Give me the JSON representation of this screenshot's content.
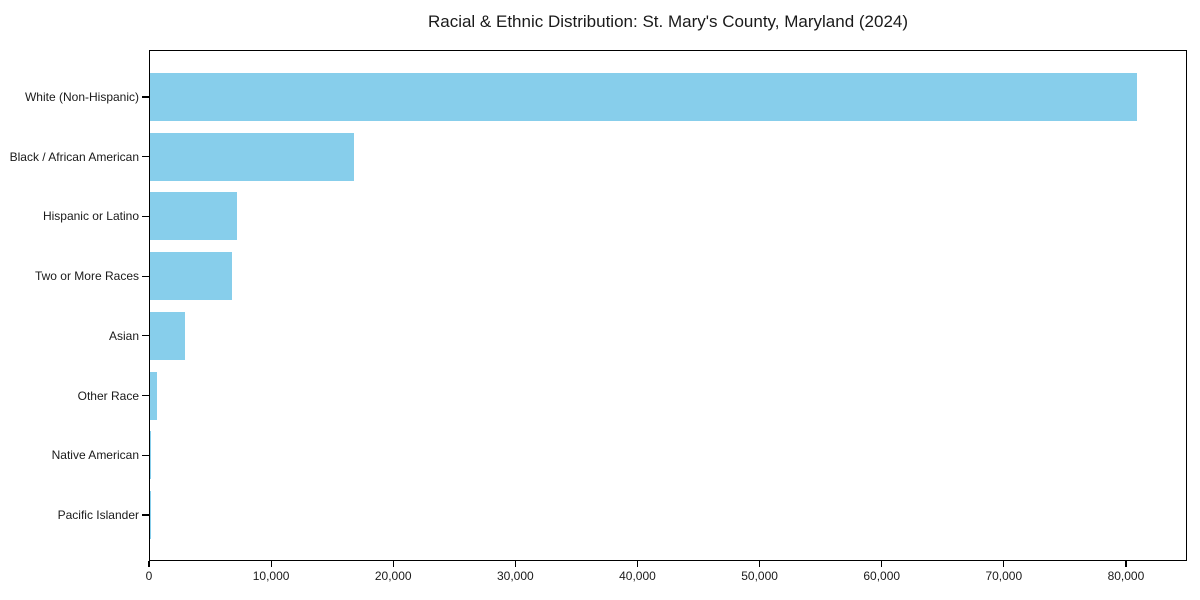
{
  "chart_data": {
    "type": "bar",
    "orientation": "horizontal",
    "title": "Racial & Ethnic Distribution: St. Mary's County, Maryland (2024)",
    "categories": [
      "White (Non-Hispanic)",
      "Black / African American",
      "Hispanic or Latino",
      "Two or More Races",
      "Asian",
      "Other Race",
      "Native American",
      "Pacific Islander"
    ],
    "values": [
      80800,
      16700,
      7100,
      6700,
      2900,
      600,
      100,
      50
    ],
    "xlabel": "",
    "ylabel": "",
    "xlim": [
      0,
      85000
    ],
    "xticks": [
      0,
      10000,
      20000,
      30000,
      40000,
      50000,
      60000,
      70000,
      80000
    ],
    "xtick_labels": [
      "0",
      "10,000",
      "20,000",
      "30,000",
      "40,000",
      "50,000",
      "60,000",
      "70,000",
      "80,000"
    ],
    "bar_color": "#87CEEB",
    "grid": false,
    "legend": false
  }
}
